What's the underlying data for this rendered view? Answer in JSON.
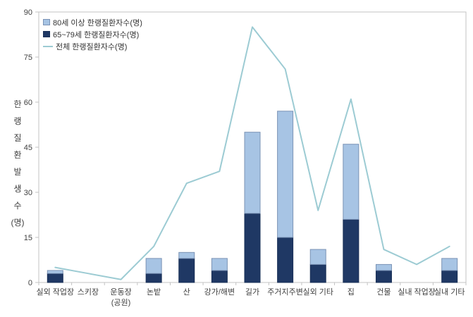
{
  "chart_data": {
    "type": "bar",
    "subtype": "stacked-bars-with-line-overlay",
    "title": "",
    "categories": [
      "실외 작업장",
      "스키장",
      "운동장\n(공원)",
      "논밭",
      "산",
      "강가/해변",
      "길가",
      "주거지주변",
      "실외 기타",
      "집",
      "건물",
      "실내 작업장",
      "실내 기타"
    ],
    "series": [
      {
        "name": "80세 이상 한랭질환자수(명)",
        "type": "bar",
        "stack": "top",
        "color": "#a7c4e4",
        "border": "#7b93b5",
        "values": [
          1,
          0,
          0,
          5,
          2,
          4,
          27,
          42,
          5,
          25,
          2,
          0,
          4
        ]
      },
      {
        "name": "65~79세 한랭질환자수(명)",
        "type": "bar",
        "stack": "bottom",
        "color": "#1f3864",
        "border": "#1a3057",
        "values": [
          3,
          0,
          0,
          3,
          8,
          4,
          23,
          15,
          6,
          21,
          4,
          0,
          4
        ]
      },
      {
        "name": "전체 한랭질환자수(명)",
        "type": "line",
        "color": "#9ccbd3",
        "values": [
          5,
          3,
          1,
          12,
          33,
          37,
          85,
          71,
          24,
          61,
          11,
          6,
          12
        ]
      }
    ],
    "xlabel": "",
    "ylabel": "한랭질환발생수(명)",
    "yticks": [
      0,
      15,
      30,
      45,
      60,
      75,
      90
    ],
    "ylim": [
      0,
      90
    ],
    "grid": false,
    "legend_position": "top-left-inside",
    "plot_border": true
  },
  "colors": {
    "background": "#ffffff",
    "axis": "#c3c3c3",
    "tick_text": "#404040",
    "bar_light": "#a7c4e4",
    "bar_dark": "#1f3864",
    "line": "#9ccbd3"
  }
}
